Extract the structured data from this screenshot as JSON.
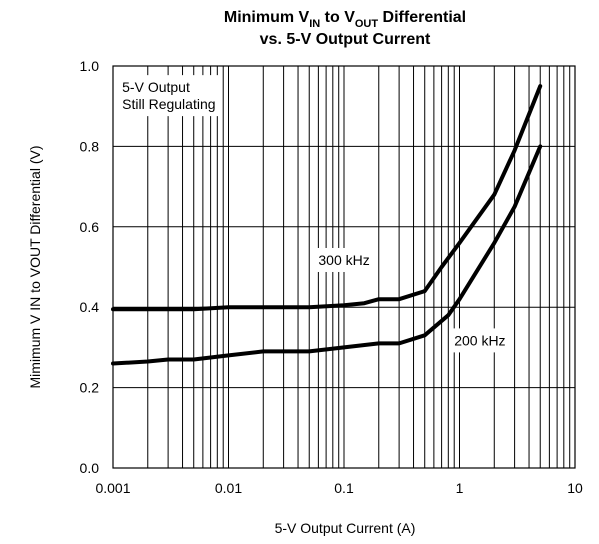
{
  "chart_data": {
    "type": "line",
    "title": {
      "line1_part1": "Minimum V",
      "line1_sub1": "IN",
      "line1_part2": " to V",
      "line1_sub2": "OUT",
      "line1_part3": " Differential",
      "line2": "vs. 5-V Output Current"
    },
    "xlabel": "5-V Output Current (A)",
    "ylabel": "Mimimum V IN to VOUT  Differential (V)",
    "x_scale": "log",
    "xlim": [
      0.001,
      10
    ],
    "ylim": [
      0.0,
      1.0
    ],
    "x_ticks": [
      {
        "value": 0.001,
        "label": "0.001"
      },
      {
        "value": 0.01,
        "label": "0.01"
      },
      {
        "value": 0.1,
        "label": "0.1"
      },
      {
        "value": 1,
        "label": "1"
      },
      {
        "value": 10,
        "label": "10"
      }
    ],
    "y_ticks": [
      {
        "value": 0.0,
        "label": "0.0"
      },
      {
        "value": 0.2,
        "label": "0.2"
      },
      {
        "value": 0.4,
        "label": "0.4"
      },
      {
        "value": 0.6,
        "label": "0.6"
      },
      {
        "value": 0.8,
        "label": "0.8"
      },
      {
        "value": 1.0,
        "label": "1.0"
      }
    ],
    "grid": true,
    "legend": "none",
    "series": [
      {
        "name": "300 kHz",
        "x": [
          0.001,
          0.002,
          0.005,
          0.01,
          0.02,
          0.05,
          0.1,
          0.15,
          0.2,
          0.3,
          0.5,
          0.7,
          1.0,
          2.0,
          3.0,
          5.0
        ],
        "y": [
          0.395,
          0.395,
          0.395,
          0.4,
          0.4,
          0.4,
          0.405,
          0.41,
          0.42,
          0.42,
          0.44,
          0.5,
          0.56,
          0.68,
          0.79,
          0.95
        ]
      },
      {
        "name": "200 kHz",
        "x": [
          0.001,
          0.002,
          0.003,
          0.005,
          0.01,
          0.02,
          0.05,
          0.1,
          0.2,
          0.3,
          0.5,
          0.8,
          1.0,
          2.0,
          3.0,
          5.0
        ],
        "y": [
          0.26,
          0.265,
          0.27,
          0.27,
          0.28,
          0.29,
          0.29,
          0.3,
          0.31,
          0.31,
          0.33,
          0.38,
          0.42,
          0.56,
          0.65,
          0.8
        ]
      }
    ],
    "annotations": [
      {
        "name": "regulating-note",
        "lines": [
          "5-V Output",
          "Still Regulating"
        ],
        "at_x": 0.0012,
        "at_y": 0.935
      },
      {
        "name": "label-300khz",
        "text": "300 kHz",
        "at_x": 0.06,
        "at_y": 0.505
      },
      {
        "name": "label-200khz",
        "text": "200 kHz",
        "at_x": 0.9,
        "at_y": 0.305
      }
    ]
  }
}
